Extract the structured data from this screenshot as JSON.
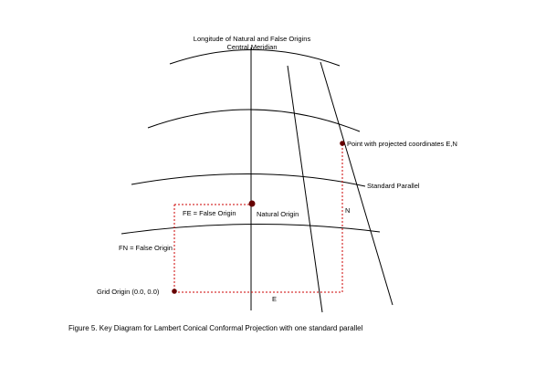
{
  "labels": {
    "meridian_line1": "Longitude of Natural and False Origins",
    "meridian_line2": "Central Meridian",
    "projected_point": "Point with projected coordinates   E,N",
    "standard_parallel": "Standard Parallel",
    "fe_false_origin": "FE = False Origin",
    "natural_origin": "Natural Origin",
    "n_label": "N",
    "fn_false_origin": "FN = False Origin",
    "grid_origin": "Grid Origin (0.0, 0.0)",
    "e_label": "E"
  },
  "caption": "Figure 5.  Key Diagram for Lambert Conical Conformal Projection with one standard parallel",
  "colors": {
    "lines": "#000000",
    "construction": "#cc0000",
    "point": "#660000"
  }
}
